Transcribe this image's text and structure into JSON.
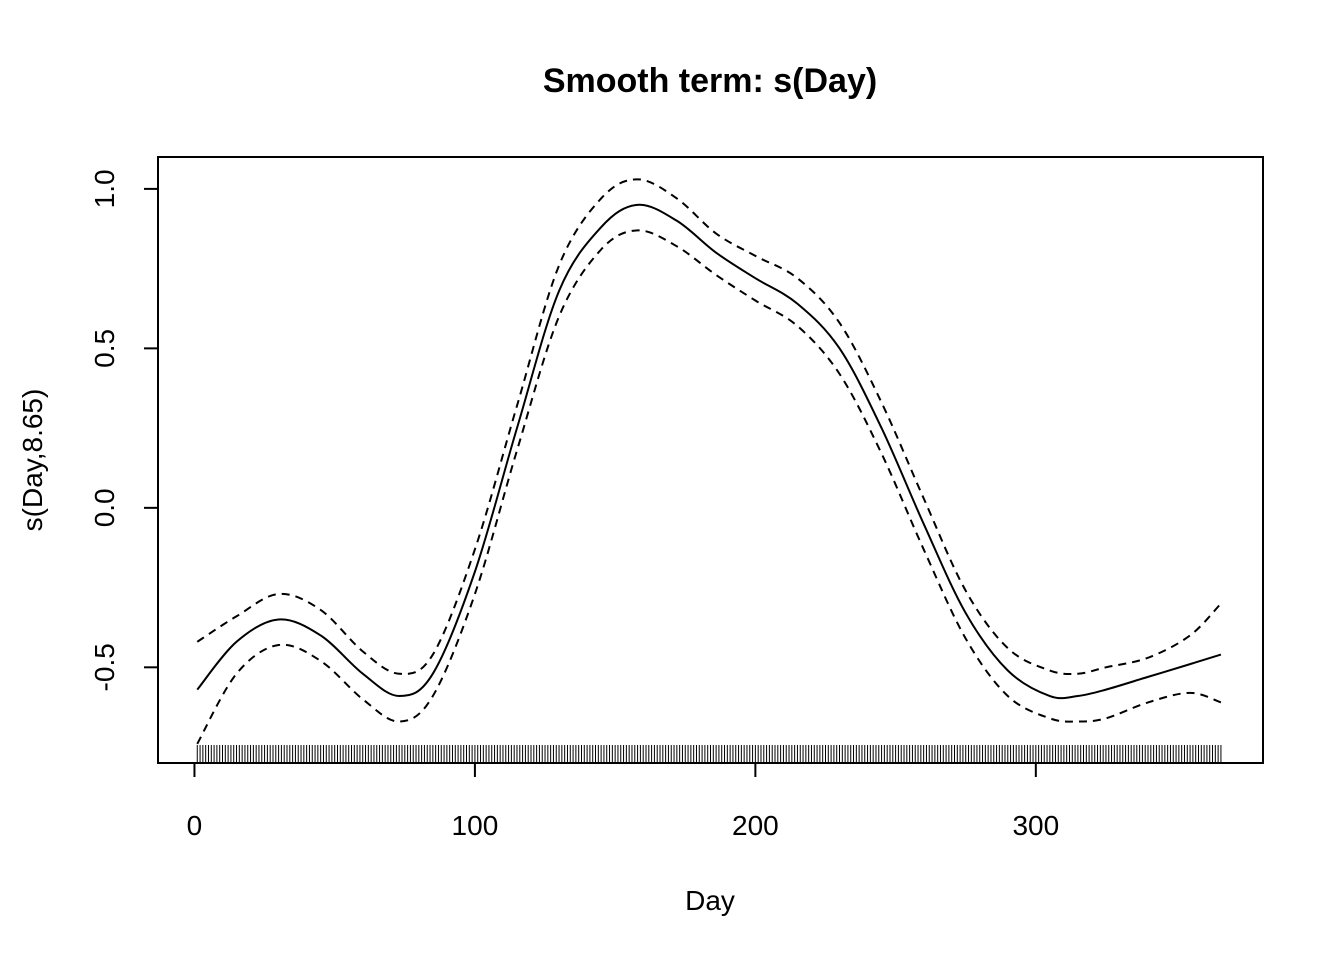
{
  "chart_data": {
    "type": "line",
    "title": "Smooth term: s(Day)",
    "xlabel": "Day",
    "ylabel": "s(Day,8.65)",
    "xlim": [
      -13,
      381
    ],
    "ylim": [
      -0.8,
      1.1
    ],
    "xticks": [
      0,
      100,
      200,
      300
    ],
    "xtick_labels": [
      "0",
      "100",
      "200",
      "300"
    ],
    "yticks": [
      -0.5,
      0.0,
      0.5,
      1.0
    ],
    "ytick_labels": [
      "-0.5",
      "0.0",
      "0.5",
      "1.0"
    ],
    "grid": false,
    "legend": "none",
    "rug": {
      "from": 1,
      "to": 366,
      "step": 1
    },
    "series": [
      {
        "role": "fit",
        "style": "solid",
        "x": [
          1,
          15,
          30,
          45,
          60,
          73,
          85,
          100,
          115,
          130,
          145,
          158,
          172,
          186,
          200,
          215,
          230,
          245,
          260,
          275,
          290,
          305,
          315,
          325,
          340,
          355,
          366
        ],
        "y": [
          -0.57,
          -0.42,
          -0.35,
          -0.4,
          -0.52,
          -0.59,
          -0.52,
          -0.2,
          0.25,
          0.68,
          0.88,
          0.95,
          0.9,
          0.8,
          0.72,
          0.64,
          0.5,
          0.25,
          -0.05,
          -0.33,
          -0.51,
          -0.59,
          -0.59,
          -0.57,
          -0.53,
          -0.49,
          -0.46
        ]
      },
      {
        "role": "upper",
        "style": "dashed",
        "x": [
          1,
          15,
          30,
          45,
          60,
          73,
          85,
          100,
          115,
          130,
          145,
          158,
          172,
          186,
          200,
          215,
          230,
          245,
          260,
          275,
          290,
          305,
          315,
          325,
          340,
          355,
          366
        ],
        "y": [
          -0.42,
          -0.34,
          -0.27,
          -0.32,
          -0.45,
          -0.52,
          -0.46,
          -0.13,
          0.32,
          0.76,
          0.97,
          1.03,
          0.97,
          0.86,
          0.79,
          0.72,
          0.58,
          0.33,
          0.03,
          -0.26,
          -0.44,
          -0.51,
          -0.52,
          -0.5,
          -0.47,
          -0.4,
          -0.3
        ]
      },
      {
        "role": "lower",
        "style": "dashed",
        "x": [
          1,
          15,
          30,
          45,
          60,
          73,
          85,
          100,
          115,
          130,
          145,
          158,
          172,
          186,
          200,
          215,
          230,
          245,
          260,
          275,
          290,
          305,
          315,
          325,
          340,
          355,
          366
        ],
        "y": [
          -0.74,
          -0.52,
          -0.43,
          -0.48,
          -0.6,
          -0.67,
          -0.59,
          -0.27,
          0.18,
          0.6,
          0.81,
          0.87,
          0.82,
          0.73,
          0.65,
          0.57,
          0.42,
          0.17,
          -0.13,
          -0.41,
          -0.59,
          -0.66,
          -0.67,
          -0.66,
          -0.61,
          -0.58,
          -0.61
        ]
      }
    ]
  }
}
